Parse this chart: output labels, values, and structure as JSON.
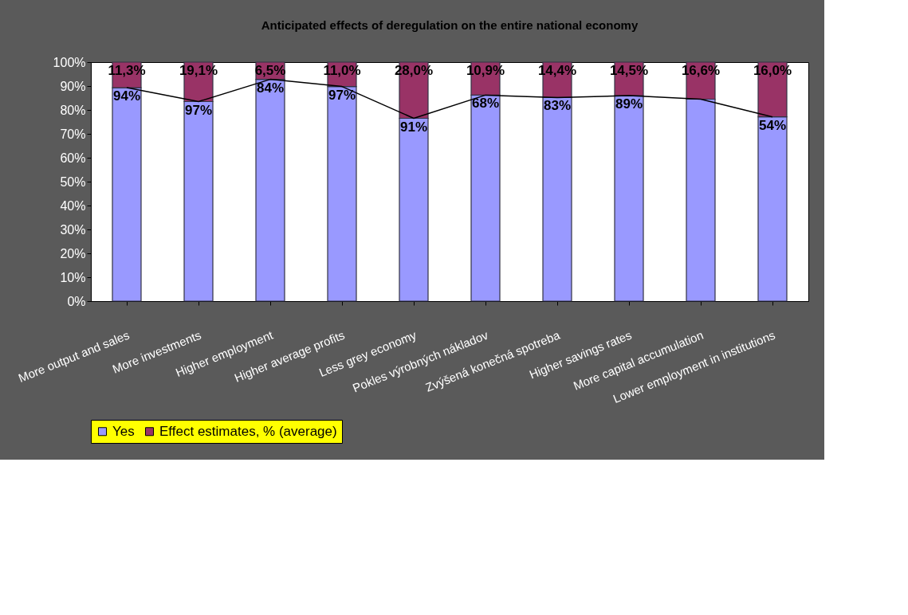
{
  "chart_data": {
    "type": "bar",
    "title": "Anticipated effects of deregulation on the entire national economy",
    "stacked": true,
    "categories": [
      "More output and sales",
      "More investments",
      "Higher employment",
      "Higher average profits",
      "Less grey economy",
      "Pokles výrobných nákladov",
      "Zvýšená konečná spotreba",
      "Higher savings rates",
      "More capital accumulation",
      "Lower employment in institutions"
    ],
    "series": [
      {
        "name": "Yes",
        "color": "#9999ff",
        "values": [
          89.3,
          83.5,
          92.8,
          89.8,
          76.5,
          86.2,
          85.2,
          86.0,
          84.5,
          77.1
        ]
      },
      {
        "name": "Effect estimates, % (average)",
        "color": "#993366",
        "values": [
          10.7,
          16.5,
          7.2,
          10.2,
          23.5,
          13.8,
          14.8,
          14.0,
          15.5,
          22.9
        ]
      },
      {
        "type": "line",
        "color": "#000000",
        "values": [
          89.3,
          83.5,
          92.8,
          89.8,
          76.5,
          86.2,
          85.2,
          86.0,
          84.5,
          77.1
        ]
      }
    ],
    "annotations": [
      {
        "text": "94%",
        "x": "More output and sales",
        "y": 89.3
      },
      {
        "text": "97%",
        "x": "More investments",
        "y": 83.5
      },
      {
        "text": "84%",
        "x": "Higher employment",
        "y": 92.8
      },
      {
        "text": "97%",
        "x": "Higher average profits",
        "y": 89.8
      },
      {
        "text": "91%",
        "x": "Less grey economy",
        "y": 76.5
      },
      {
        "text": "68%",
        "x": "Pokles výrobných nákladov",
        "y": 86.2
      },
      {
        "text": "83%",
        "x": "Zvýšená konečná spotreba",
        "y": 85.2
      },
      {
        "text": "89%",
        "x": "Higher savings rates",
        "y": 86.0
      },
      {
        "text": "54%",
        "x": "Lower employment in institutions",
        "y": 77.1
      },
      {
        "text": "11,3%",
        "x": "More output and sales",
        "y": 100
      },
      {
        "text": "19,1%",
        "x": "More investments",
        "y": 100
      },
      {
        "text": "6,5%",
        "x": "Higher employment",
        "y": 100
      },
      {
        "text": "11,0%",
        "x": "Higher average profits",
        "y": 100
      },
      {
        "text": "28,0%",
        "x": "Less grey economy",
        "y": 100
      },
      {
        "text": "10,9%",
        "x": "Pokles výrobných nákladov",
        "y": 100
      },
      {
        "text": "14,4%",
        "x": "Zvýšená konečná spotreba",
        "y": 100
      },
      {
        "text": "14,5%",
        "x": "Higher savings rates",
        "y": 100
      },
      {
        "text": "16,6%",
        "x": "More capital accumulation",
        "y": 100
      },
      {
        "text": "16,0%",
        "x": "Lower employment in institutions",
        "y": 100
      }
    ],
    "ylim": [
      0,
      100
    ],
    "yticks": [
      {
        "value": 0,
        "label": "0%"
      },
      {
        "value": 10,
        "label": "10%"
      },
      {
        "value": 20,
        "label": "20%"
      },
      {
        "value": 30,
        "label": "30%"
      },
      {
        "value": 40,
        "label": "40%"
      },
      {
        "value": 50,
        "label": "50%"
      },
      {
        "value": 60,
        "label": "60%"
      },
      {
        "value": 70,
        "label": "70%"
      },
      {
        "value": 80,
        "label": "80%"
      },
      {
        "value": 90,
        "label": "90%"
      },
      {
        "value": 100,
        "label": "100%"
      }
    ],
    "grid": false,
    "legend": "bottom"
  }
}
